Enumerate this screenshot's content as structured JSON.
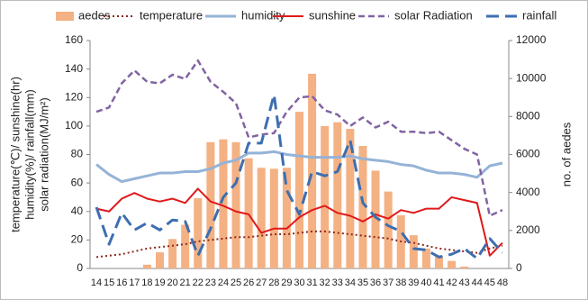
{
  "chart_data": {
    "type": "combo",
    "y_label": [
      "temperature(℃)/ sunshine(hr)",
      "humidity(%)/ rainfall(mm)",
      "solar radiation(MJ/m²)"
    ],
    "y2_label": "no. of aedes",
    "categories": [
      "14",
      "15",
      "16",
      "17",
      "18",
      "19",
      "20",
      "21",
      "22",
      "23",
      "24",
      "25",
      "26",
      "27",
      "28",
      "29",
      "30",
      "31",
      "32",
      "33",
      "34",
      "35",
      "36",
      "37",
      "38",
      "39",
      "40",
      "41",
      "42",
      "43",
      "44",
      "45",
      "48"
    ],
    "ylim": [
      0,
      160
    ],
    "yticks": [
      0,
      20,
      40,
      60,
      80,
      100,
      120,
      140,
      160
    ],
    "y2lim": [
      0,
      12000
    ],
    "y2ticks": [
      0,
      2000,
      4000,
      6000,
      8000,
      10000,
      12000
    ],
    "legend": "top",
    "grid": false,
    "series": [
      {
        "name": "aedes",
        "type": "bar",
        "axis": "y2",
        "color": "#f4b183",
        "values": [
          0,
          0,
          0,
          0,
          200,
          850,
          1550,
          2300,
          3700,
          6650,
          6800,
          6650,
          5800,
          5300,
          5250,
          5300,
          8250,
          10250,
          7500,
          7700,
          7350,
          6450,
          5150,
          4050,
          2800,
          1750,
          1050,
          650,
          400,
          100,
          0,
          0,
          0
        ]
      },
      {
        "name": "temperature",
        "type": "line",
        "style": "dotted",
        "color": "#8b2a1e",
        "values": [
          8,
          9,
          10,
          12,
          14,
          15,
          16,
          17,
          19,
          20,
          21,
          22,
          22,
          23,
          24,
          24,
          25,
          26,
          26,
          25,
          24,
          23,
          22,
          21,
          19,
          18,
          16,
          14,
          13,
          12,
          11,
          14,
          16
        ]
      },
      {
        "name": "humidity",
        "type": "line",
        "style": "solid",
        "color": "#95b3d7",
        "values": [
          73,
          66,
          61,
          63,
          65,
          67,
          67,
          68,
          68,
          70,
          74,
          76,
          81,
          81,
          82,
          80,
          79,
          78,
          78,
          78,
          79,
          77,
          76,
          75,
          73,
          72,
          69,
          67,
          67,
          66,
          64,
          72,
          74
        ]
      },
      {
        "name": "sunshine",
        "type": "line",
        "style": "solid",
        "color": "#e0191b",
        "values": [
          42,
          40,
          49,
          53,
          49,
          47,
          49,
          46,
          56,
          47,
          44,
          40,
          38,
          25,
          28,
          28,
          36,
          41,
          44,
          39,
          37,
          33,
          38,
          35,
          41,
          39,
          42,
          42,
          50,
          48,
          46,
          9,
          18
        ]
      },
      {
        "name": "solar Radiation",
        "type": "line",
        "style": "dashed",
        "color": "#8064a2",
        "values": [
          110,
          113,
          130,
          139,
          131,
          130,
          136,
          133,
          146,
          131,
          124,
          116,
          92,
          94,
          95,
          110,
          120,
          121,
          111,
          108,
          100,
          106,
          99,
          103,
          96,
          96,
          95,
          96,
          90,
          84,
          80,
          37,
          41
        ]
      },
      {
        "name": "rainfall",
        "type": "line",
        "style": "longdash",
        "color": "#3d6eb0",
        "values": [
          43,
          17,
          39,
          27,
          32,
          27,
          34,
          33,
          9,
          28,
          50,
          60,
          88,
          88,
          122,
          55,
          38,
          68,
          65,
          68,
          90,
          46,
          36,
          30,
          26,
          14,
          13,
          8,
          10,
          14,
          7,
          21,
          11
        ]
      }
    ]
  }
}
